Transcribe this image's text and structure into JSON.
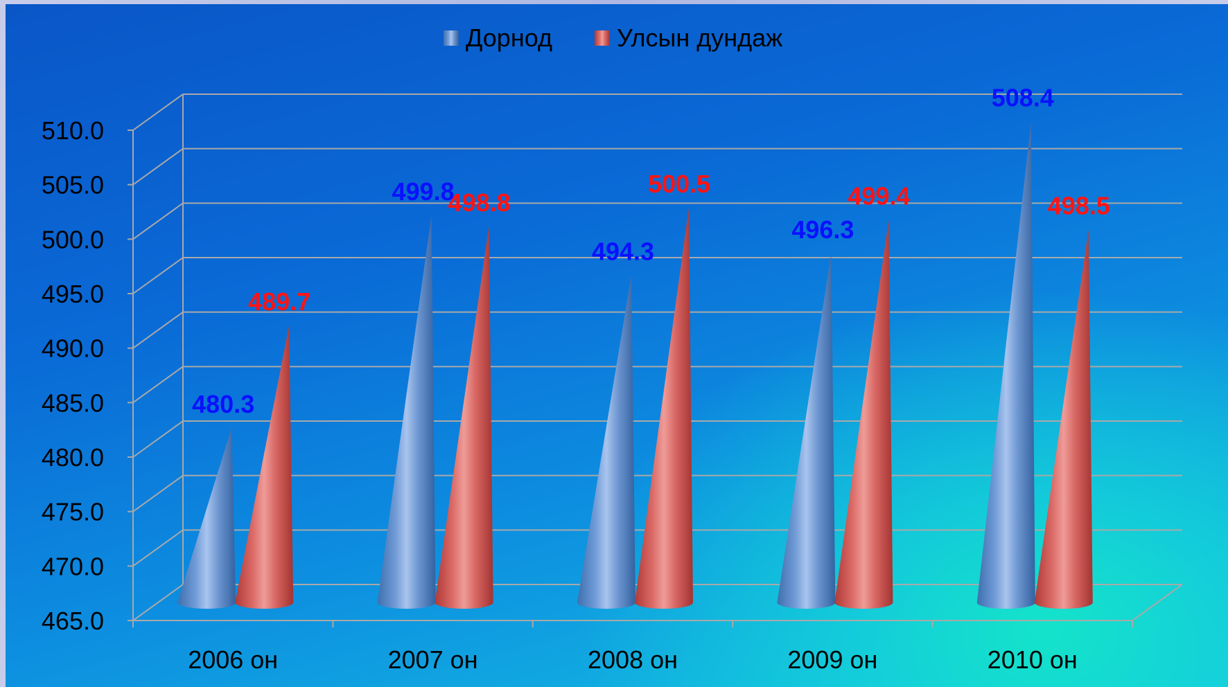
{
  "chart_data": {
    "type": "bar",
    "style": "3d-cone",
    "categories": [
      "2006 он",
      "2007 он",
      "2008 он",
      "2009 он",
      "2010 он"
    ],
    "series": [
      {
        "name": "Дорнод",
        "values": [
          480.3,
          499.8,
          494.3,
          496.3,
          508.4
        ],
        "color": "#4f81bd",
        "label_color": "#0b10ff"
      },
      {
        "name": "Улсын дундаж",
        "values": [
          489.7,
          498.8,
          500.5,
          499.4,
          498.5
        ],
        "color": "#c0504d",
        "label_color": "#ff1414"
      }
    ],
    "y_ticks": [
      "465.0",
      "470.0",
      "475.0",
      "480.0",
      "485.0",
      "490.0",
      "495.0",
      "500.0",
      "505.0",
      "510.0"
    ],
    "ylim": [
      465,
      510
    ],
    "grid": true,
    "legend": "top-center",
    "background": [
      "#0a56c8",
      "#14c2e2",
      "#14e6c8"
    ]
  }
}
